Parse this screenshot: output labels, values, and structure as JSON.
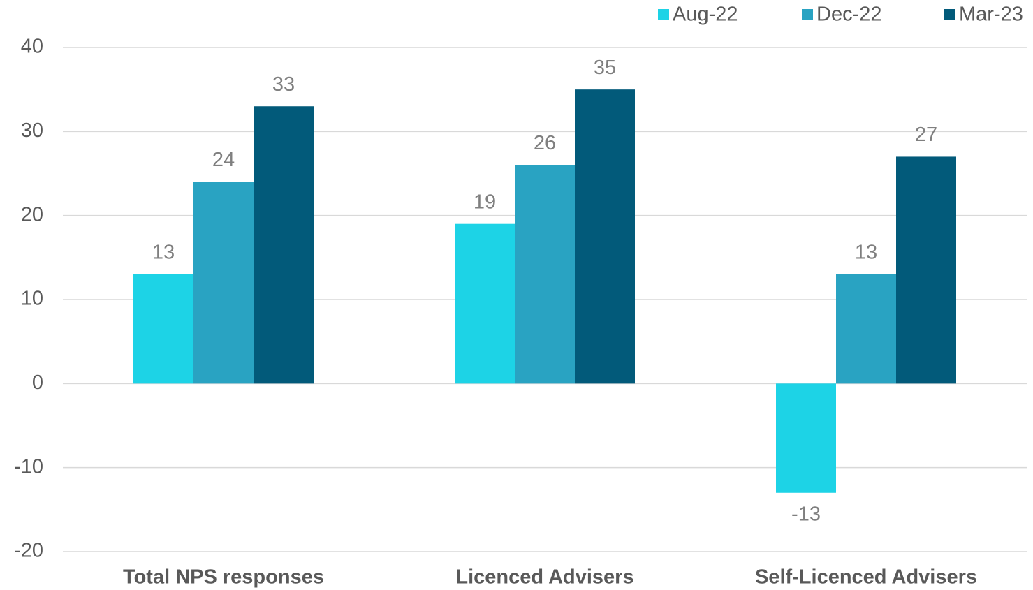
{
  "chart_data": {
    "type": "bar",
    "categories": [
      "Total NPS responses",
      "Licenced Advisers",
      "Self-Licenced Advisers"
    ],
    "series": [
      {
        "name": "Aug-22",
        "color": "#1dd3e6",
        "values": [
          13,
          19,
          -13
        ]
      },
      {
        "name": "Dec-22",
        "color": "#29a3c2",
        "values": [
          24,
          26,
          13
        ]
      },
      {
        "name": "Mar-23",
        "color": "#025a7a",
        "values": [
          33,
          35,
          27
        ]
      }
    ],
    "ylim": [
      -20,
      40
    ],
    "yticks": [
      -20,
      -10,
      0,
      10,
      20,
      30,
      40
    ],
    "grid": true,
    "legend": "top-right"
  }
}
